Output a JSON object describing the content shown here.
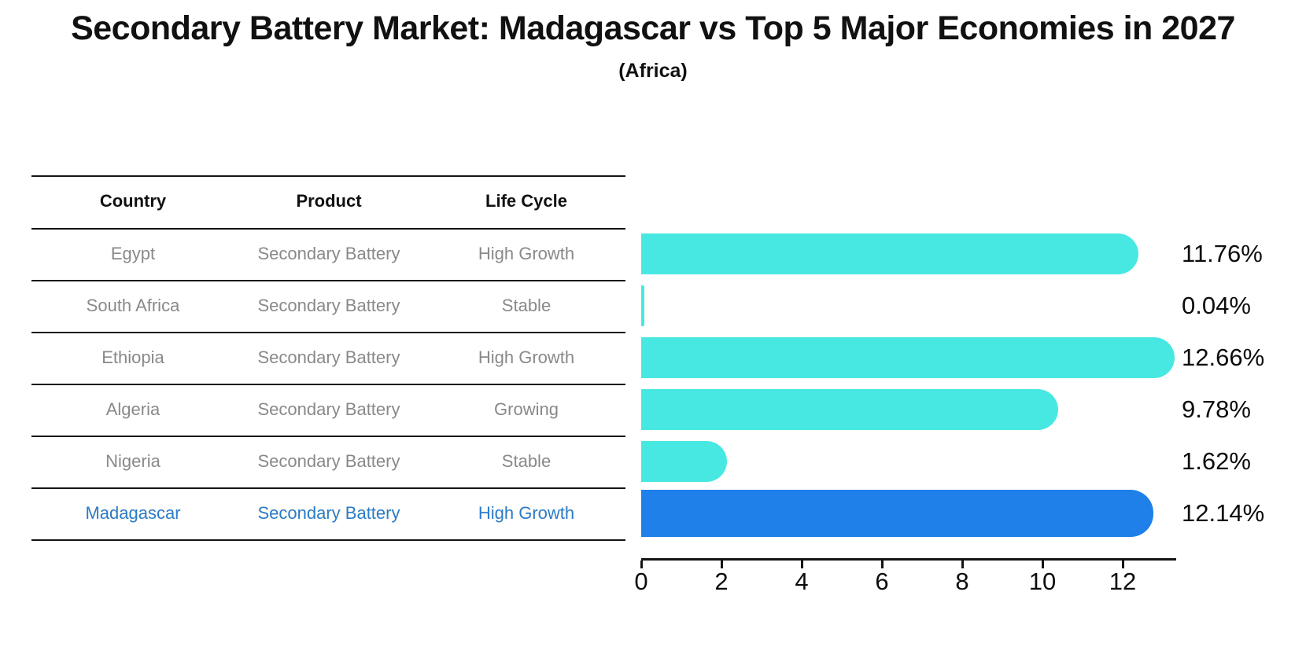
{
  "title": "Secondary Battery Market: Madagascar vs Top 5 Major Economies in 2027",
  "subtitle": "(Africa)",
  "table": {
    "headers": [
      "Country",
      "Product",
      "Life Cycle"
    ],
    "rows": [
      {
        "country": "Egypt",
        "product": "Secondary Battery",
        "life_cycle": "High Growth"
      },
      {
        "country": "South Africa",
        "product": "Secondary Battery",
        "life_cycle": "Stable"
      },
      {
        "country": "Ethiopia",
        "product": "Secondary Battery",
        "life_cycle": "High Growth"
      },
      {
        "country": "Algeria",
        "product": "Secondary Battery",
        "life_cycle": "Growing"
      },
      {
        "country": "Nigeria",
        "product": "Secondary Battery",
        "life_cycle": "Stable"
      },
      {
        "country": "Madagascar",
        "product": "Secondary Battery",
        "life_cycle": "High Growth"
      }
    ],
    "highlight_row": "Madagascar"
  },
  "chart_data": {
    "type": "bar",
    "orientation": "horizontal",
    "categories": [
      "Egypt",
      "South Africa",
      "Ethiopia",
      "Algeria",
      "Nigeria",
      "Madagascar"
    ],
    "values": [
      11.76,
      0.04,
      12.66,
      9.78,
      1.62,
      12.14
    ],
    "value_labels": [
      "11.76%",
      "0.04%",
      "12.66%",
      "9.78%",
      "1.62%",
      "12.14%"
    ],
    "xticks": [
      0,
      2,
      4,
      6,
      8,
      10,
      12
    ],
    "xlim": [
      0,
      13.3
    ],
    "grid": false,
    "legend": "none",
    "bar_color": "#47e8e2",
    "highlight_bar_color": "#1f80ea",
    "highlight_category": "Madagascar",
    "highlight_index": 5
  },
  "colors": {
    "background": "#ffffff",
    "table_line": "#141414",
    "row_text": "#898989",
    "header_text": "#111111",
    "highlight_text": "#2a7bce",
    "axis": "#141414",
    "value_label_text": "#0d0d0d"
  }
}
